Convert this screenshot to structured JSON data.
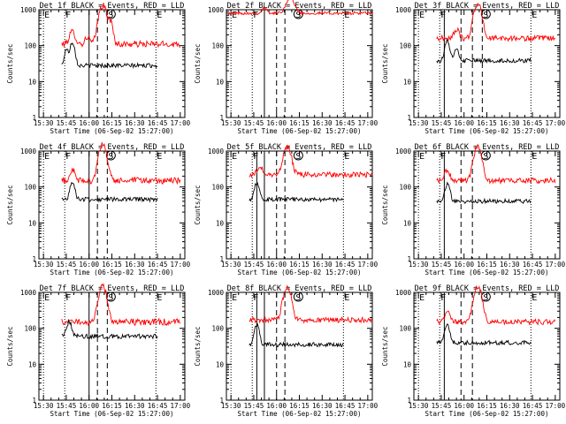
{
  "colors": {
    "events": "#000000",
    "lld": "#ff0000",
    "background": "#ffffff",
    "axes": "#000000"
  },
  "common": {
    "xlabel": "Start Time (06-Sep-02 15:27:00)",
    "ylabel": "Counts/sec",
    "x_tick_labels": [
      "15:30",
      "15:45",
      "16:00",
      "16:15",
      "16:30",
      "16:45",
      "17:00"
    ],
    "y_tick_labels": [
      "1",
      "10",
      "100",
      "1000"
    ]
  },
  "chart_data": [
    {
      "type": "line",
      "title": "Det 1f BLACK = Events, RED = LLD",
      "xlabel": "Start Time (06-Sep-02 15:27:00)",
      "ylabel": "Counts/sec",
      "xlim_min": [
        0,
        96
      ],
      "ylim": [
        1,
        1000
      ],
      "yscale": "log",
      "markers": [
        {
          "label": "E",
          "t": 3,
          "style": "solid"
        },
        {
          "label": "F",
          "t": 17,
          "style": "solid"
        },
        {
          "label": "S",
          "t": 45,
          "style": "none"
        },
        {
          "label": "E",
          "t": 77,
          "style": "solid"
        }
      ],
      "vlines": [
        {
          "t": 33,
          "style": "solid"
        },
        {
          "t": 38.5,
          "style": "dashed"
        },
        {
          "t": 45,
          "style": "dashed"
        }
      ],
      "series": [
        {
          "name": "LLD",
          "color": "#ff0000",
          "t_start": 15,
          "t_end": 93,
          "base": 110,
          "jag": 0.18,
          "bumps": [
            {
              "c": 22,
              "w": 2.5,
              "h": 1.2
            },
            {
              "c": 32,
              "w": 2,
              "h": 0.6
            },
            {
              "c": 42,
              "w": 3,
              "h": 11
            },
            {
              "c": 47,
              "w": 2,
              "h": 3
            }
          ]
        },
        {
          "name": "Events",
          "color": "#000000",
          "t_start": 15,
          "t_end": 78,
          "base": 28,
          "jag": 0.12,
          "bumps": [
            {
              "c": 18,
              "w": 1.5,
              "h": 1.8
            },
            {
              "c": 22,
              "w": 2,
              "h": 3.5
            }
          ]
        }
      ]
    },
    {
      "type": "line",
      "title": "Det 2f BLACK = Events, RED = LLD",
      "xlabel": "Start Time (06-Sep-02 15:27:00)",
      "ylabel": "Counts/sec",
      "xlim_min": [
        0,
        96
      ],
      "ylim": [
        1,
        1000
      ],
      "yscale": "log",
      "markers": [
        {
          "label": "E",
          "t": 3,
          "style": "solid"
        },
        {
          "label": "F",
          "t": 17,
          "style": "solid"
        },
        {
          "label": "S",
          "t": 45,
          "style": "none"
        },
        {
          "label": "E",
          "t": 77,
          "style": "solid"
        }
      ],
      "vlines": [
        {
          "t": 25,
          "style": "solid"
        },
        {
          "t": 33,
          "style": "dashed"
        },
        {
          "t": 38.5,
          "style": "dashed"
        }
      ],
      "series": [
        {
          "name": "LLD",
          "color": "#ff0000",
          "t_start": 1,
          "t_end": 96,
          "base": 800,
          "jag": 0.08,
          "bumps": [
            {
              "c": 42,
              "w": 3.5,
              "h": 1.6
            },
            {
              "c": 25,
              "w": 2,
              "h": 0.4
            }
          ]
        }
      ]
    },
    {
      "type": "line",
      "title": "Det 3f BLACK = Events, RED = LLD",
      "xlabel": "Start Time (06-Sep-02 15:27:00)",
      "ylabel": "Counts/sec",
      "xlim_min": [
        0,
        96
      ],
      "ylim": [
        1,
        1000
      ],
      "yscale": "log",
      "markers": [
        {
          "label": "E",
          "t": 3,
          "style": "solid"
        },
        {
          "label": "F",
          "t": 17,
          "style": "solid"
        },
        {
          "label": "S",
          "t": 45,
          "style": "none"
        },
        {
          "label": "E",
          "t": 77,
          "style": "solid"
        }
      ],
      "vlines": [
        {
          "t": 20,
          "style": "solid"
        },
        {
          "t": 31,
          "style": "dashed"
        },
        {
          "t": 38.5,
          "style": "dashed"
        },
        {
          "t": 45,
          "style": "dashed"
        }
      ],
      "series": [
        {
          "name": "LLD",
          "color": "#ff0000",
          "t_start": 15,
          "t_end": 93,
          "base": 160,
          "jag": 0.15,
          "bumps": [
            {
              "c": 28,
              "w": 2,
              "h": 0.8
            },
            {
              "c": 42,
              "w": 3,
              "h": 8
            }
          ]
        },
        {
          "name": "Events",
          "color": "#000000",
          "t_start": 15,
          "t_end": 77,
          "base": 38,
          "jag": 0.12,
          "bumps": [
            {
              "c": 22,
              "w": 2,
              "h": 2.5
            },
            {
              "c": 28,
              "w": 1.5,
              "h": 1.2
            }
          ]
        }
      ]
    },
    {
      "type": "line",
      "title": "Det 4f BLACK = Events, RED = LLD",
      "xlabel": "Start Time (06-Sep-02 15:27:00)",
      "ylabel": "Counts/sec",
      "xlim_min": [
        0,
        96
      ],
      "ylim": [
        1,
        1000
      ],
      "yscale": "log",
      "markers": [
        {
          "label": "E",
          "t": 3,
          "style": "solid"
        },
        {
          "label": "F",
          "t": 17,
          "style": "solid"
        },
        {
          "label": "S",
          "t": 45,
          "style": "none"
        },
        {
          "label": "E",
          "t": 77,
          "style": "solid"
        }
      ],
      "vlines": [
        {
          "t": 33,
          "style": "solid"
        },
        {
          "t": 38.5,
          "style": "dashed"
        },
        {
          "t": 45,
          "style": "dashed"
        }
      ],
      "series": [
        {
          "name": "LLD",
          "color": "#ff0000",
          "t_start": 15,
          "t_end": 93,
          "base": 150,
          "jag": 0.18,
          "bumps": [
            {
              "c": 22,
              "w": 2,
              "h": 1
            },
            {
              "c": 42,
              "w": 3,
              "h": 9
            }
          ]
        },
        {
          "name": "Events",
          "color": "#000000",
          "t_start": 15,
          "t_end": 78,
          "base": 45,
          "jag": 0.12,
          "bumps": [
            {
              "c": 22,
              "w": 2,
              "h": 2
            }
          ]
        }
      ]
    },
    {
      "type": "line",
      "title": "Det 5f BLACK = Events, RED = LLD",
      "xlabel": "Start Time (06-Sep-02 15:27:00)",
      "ylabel": "Counts/sec",
      "xlim_min": [
        0,
        96
      ],
      "ylim": [
        1,
        1000
      ],
      "yscale": "log",
      "markers": [
        {
          "label": "E",
          "t": 3,
          "style": "solid"
        },
        {
          "label": "F",
          "t": 17,
          "style": "solid"
        },
        {
          "label": "S",
          "t": 45,
          "style": "none"
        },
        {
          "label": "E",
          "t": 77,
          "style": "solid"
        }
      ],
      "vlines": [
        {
          "t": 20,
          "style": "solid"
        },
        {
          "t": 25,
          "style": "solid"
        },
        {
          "t": 33,
          "style": "dashed"
        },
        {
          "t": 38.5,
          "style": "dashed"
        }
      ],
      "series": [
        {
          "name": "LLD",
          "color": "#ff0000",
          "t_start": 15,
          "t_end": 96,
          "base": 220,
          "jag": 0.15,
          "bumps": [
            {
              "c": 22,
              "w": 2,
              "h": 0.8
            },
            {
              "c": 40,
              "w": 3,
              "h": 5
            }
          ]
        },
        {
          "name": "Events",
          "color": "#000000",
          "t_start": 15,
          "t_end": 77,
          "base": 45,
          "jag": 0.12,
          "bumps": [
            {
              "c": 20,
              "w": 2,
              "h": 2
            }
          ]
        }
      ]
    },
    {
      "type": "line",
      "title": "Det 6f BLACK = Events, RED = LLD",
      "xlabel": "Start Time (06-Sep-02 15:27:00)",
      "ylabel": "Counts/sec",
      "xlim_min": [
        0,
        96
      ],
      "ylim": [
        1,
        1000
      ],
      "yscale": "log",
      "markers": [
        {
          "label": "E",
          "t": 3,
          "style": "solid"
        },
        {
          "label": "F",
          "t": 17,
          "style": "solid"
        },
        {
          "label": "S",
          "t": 45,
          "style": "none"
        },
        {
          "label": "E",
          "t": 77,
          "style": "solid"
        }
      ],
      "vlines": [
        {
          "t": 20,
          "style": "solid"
        },
        {
          "t": 31,
          "style": "dashed"
        },
        {
          "t": 38.5,
          "style": "dashed"
        }
      ],
      "series": [
        {
          "name": "LLD",
          "color": "#ff0000",
          "t_start": 15,
          "t_end": 93,
          "base": 150,
          "jag": 0.15,
          "bumps": [
            {
              "c": 22,
              "w": 2,
              "h": 1
            },
            {
              "c": 42,
              "w": 3,
              "h": 8
            }
          ]
        },
        {
          "name": "Events",
          "color": "#000000",
          "t_start": 15,
          "t_end": 77,
          "base": 40,
          "jag": 0.12,
          "bumps": [
            {
              "c": 22,
              "w": 2,
              "h": 2
            }
          ]
        }
      ]
    },
    {
      "type": "line",
      "title": "Det 7f BLACK = Events, RED = LLD",
      "xlabel": "Start Time (06-Sep-02 15:27:00)",
      "ylabel": "Counts/sec",
      "xlim_min": [
        0,
        96
      ],
      "ylim": [
        1,
        1000
      ],
      "yscale": "log",
      "markers": [
        {
          "label": "E",
          "t": 3,
          "style": "solid"
        },
        {
          "label": "F",
          "t": 17,
          "style": "solid"
        },
        {
          "label": "S",
          "t": 45,
          "style": "none"
        },
        {
          "label": "E",
          "t": 77,
          "style": "solid"
        }
      ],
      "vlines": [
        {
          "t": 33,
          "style": "solid"
        },
        {
          "t": 38.5,
          "style": "dashed"
        },
        {
          "t": 45,
          "style": "dashed"
        }
      ],
      "series": [
        {
          "name": "LLD",
          "color": "#ff0000",
          "t_start": 15,
          "t_end": 93,
          "base": 150,
          "jag": 0.18,
          "bumps": [
            {
              "c": 42,
              "w": 3,
              "h": 9
            }
          ]
        },
        {
          "name": "Events",
          "color": "#000000",
          "t_start": 15,
          "t_end": 78,
          "base": 60,
          "jag": 0.12,
          "bumps": [
            {
              "c": 20,
              "w": 2,
              "h": 1.5
            }
          ]
        }
      ]
    },
    {
      "type": "line",
      "title": "Det 8f BLACK = Events, RED = LLD",
      "xlabel": "Start Time (06-Sep-02 15:27:00)",
      "ylabel": "Counts/sec",
      "xlim_min": [
        0,
        96
      ],
      "ylim": [
        1,
        1000
      ],
      "yscale": "log",
      "markers": [
        {
          "label": "E",
          "t": 3,
          "style": "solid"
        },
        {
          "label": "F",
          "t": 17,
          "style": "solid"
        },
        {
          "label": "S",
          "t": 45,
          "style": "none"
        },
        {
          "label": "E",
          "t": 77,
          "style": "solid"
        }
      ],
      "vlines": [
        {
          "t": 20,
          "style": "solid"
        },
        {
          "t": 25,
          "style": "solid"
        },
        {
          "t": 33,
          "style": "dashed"
        },
        {
          "t": 38.5,
          "style": "dashed"
        }
      ],
      "series": [
        {
          "name": "LLD",
          "color": "#ff0000",
          "t_start": 15,
          "t_end": 96,
          "base": 170,
          "jag": 0.15,
          "bumps": [
            {
              "c": 40,
              "w": 3,
              "h": 7
            }
          ]
        },
        {
          "name": "Events",
          "color": "#000000",
          "t_start": 15,
          "t_end": 77,
          "base": 35,
          "jag": 0.12,
          "bumps": [
            {
              "c": 20,
              "w": 2,
              "h": 2.5
            }
          ]
        }
      ]
    },
    {
      "type": "line",
      "title": "Det 9f BLACK = Events, RED = LLD",
      "xlabel": "Start Time (06-Sep-02 15:27:00)",
      "ylabel": "Counts/sec",
      "xlim_min": [
        0,
        96
      ],
      "ylim": [
        1,
        1000
      ],
      "yscale": "log",
      "markers": [
        {
          "label": "E",
          "t": 3,
          "style": "solid"
        },
        {
          "label": "F",
          "t": 17,
          "style": "solid"
        },
        {
          "label": "S",
          "t": 45,
          "style": "none"
        },
        {
          "label": "E",
          "t": 77,
          "style": "solid"
        }
      ],
      "vlines": [
        {
          "t": 20,
          "style": "solid"
        },
        {
          "t": 31,
          "style": "dashed"
        },
        {
          "t": 38.5,
          "style": "dashed"
        }
      ],
      "series": [
        {
          "name": "LLD",
          "color": "#ff0000",
          "t_start": 15,
          "t_end": 93,
          "base": 150,
          "jag": 0.15,
          "bumps": [
            {
              "c": 22,
              "w": 2,
              "h": 1
            },
            {
              "c": 42,
              "w": 3,
              "h": 9
            }
          ]
        },
        {
          "name": "Events",
          "color": "#000000",
          "t_start": 15,
          "t_end": 77,
          "base": 40,
          "jag": 0.12,
          "bumps": [
            {
              "c": 22,
              "w": 2,
              "h": 2
            }
          ]
        }
      ]
    }
  ]
}
